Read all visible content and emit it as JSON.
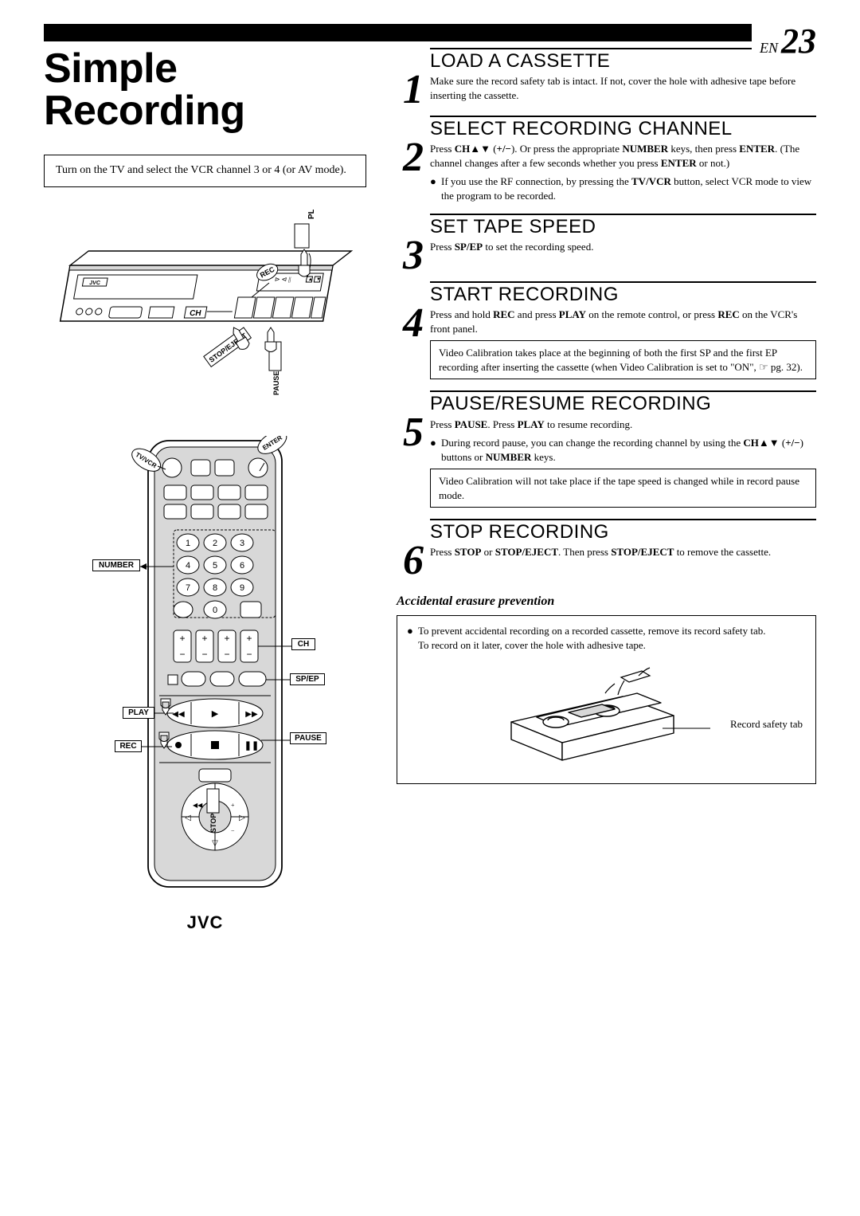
{
  "page": {
    "lang_prefix": "EN",
    "number": "23"
  },
  "title": "Simple Recording",
  "intro": "Turn on the TV and select the VCR channel 3 or 4 (or AV mode).",
  "brand": "JVC",
  "vcr_labels": {
    "play": "PLAY",
    "rec": "REC",
    "ch": "CH",
    "stop_eject": "STOP/EJECT",
    "pause": "PAUSE"
  },
  "remote_labels": {
    "tv_vcr": "TV/VCR",
    "enter": "ENTER",
    "number": "NUMBER",
    "ch": "CH",
    "sp_ep": "SP/EP",
    "play": "PLAY",
    "pause": "PAUSE",
    "rec": "REC",
    "stop": "STOP"
  },
  "steps": [
    {
      "n": "1",
      "title": "LOAD A CASSETTE",
      "text": "Make sure the record safety tab is intact. If not, cover the hole with adhesive tape before inserting the cassette."
    },
    {
      "n": "2",
      "title": "SELECT RECORDING CHANNEL",
      "text_html": "Press <b>CH▲▼</b> (<b>+/−</b>). Or press the appropriate <b>NUMBER</b> keys, then press <b>ENTER</b>. (The channel changes after a few seconds whether you press <b>ENTER</b> or not.)",
      "bullet_html": "If you use the RF connection, by pressing the <b>TV/VCR</b> button, select VCR mode to view the program to be recorded."
    },
    {
      "n": "3",
      "title": "SET TAPE SPEED",
      "text_html": "Press <b>SP/EP</b> to set the recording speed."
    },
    {
      "n": "4",
      "title": "START RECORDING",
      "text_html": "Press and hold <b>REC</b> and press <b>PLAY</b> on the remote control, or press <b>REC</b> on the VCR's front panel.",
      "note": "Video Calibration takes place at the beginning of both the first SP and the first EP recording after inserting the cassette (when Video Calibration is set to \"ON\", ☞ pg. 32)."
    },
    {
      "n": "5",
      "title": "PAUSE/RESUME RECORDING",
      "text_html": "Press <b>PAUSE</b>. Press <b>PLAY</b> to resume recording.",
      "bullet_html": "During record pause, you can change the recording channel by using the <b>CH▲▼</b> (<b>+/−</b>) buttons or <b>NUMBER</b> keys.",
      "note": "Video Calibration will not take place if the tape speed is changed while in record pause mode."
    },
    {
      "n": "6",
      "title": "STOP RECORDING",
      "text_html": "Press <b>STOP</b> or <b>STOP/EJECT</b>. Then press <b>STOP/EJECT</b> to remove the cassette."
    }
  ],
  "prevention": {
    "heading": "Accidental erasure prevention",
    "bullet": "To prevent accidental recording on a recorded cassette, remove its record safety tab.",
    "line2": "To record on it later, cover the hole with adhesive tape.",
    "tab_label": "Record safety tab"
  },
  "colors": {
    "fg": "#000000",
    "bg": "#ffffff",
    "fill_gray": "#d8d8d8"
  }
}
